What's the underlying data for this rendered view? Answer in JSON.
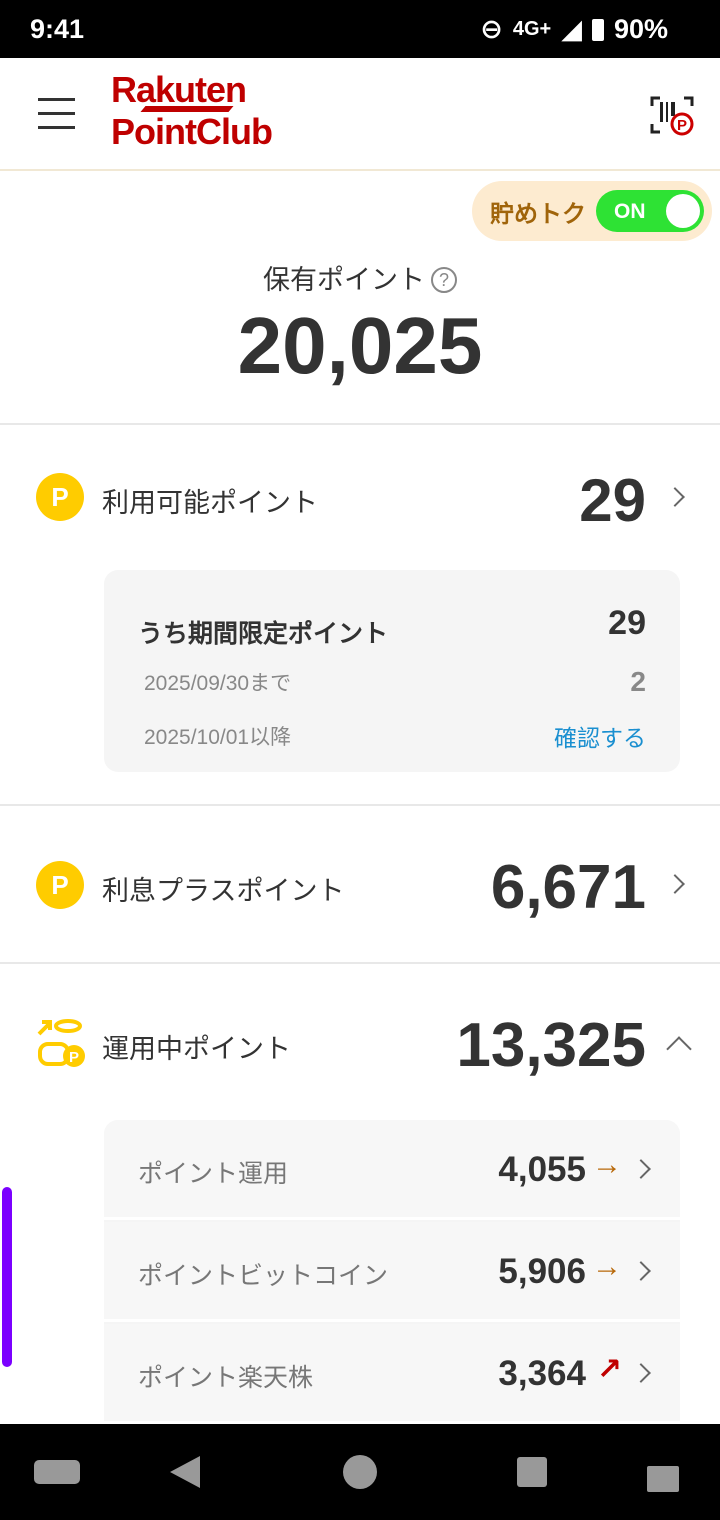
{
  "status_bar": {
    "time": "9:41",
    "network": "4G+",
    "battery": "90%"
  },
  "header": {
    "logo_line1": "Rakuten",
    "logo_line2": "PointClub"
  },
  "toggle": {
    "label": "貯めトク",
    "state": "ON",
    "color": "#2ee234"
  },
  "held": {
    "label": "保有ポイント",
    "help": "?",
    "total": "20,025"
  },
  "available": {
    "label": "利用可能ポイント",
    "value": "29",
    "icon": "P",
    "limited": {
      "label": "うち期間限定ポイント",
      "value": "29",
      "rows": [
        {
          "date": "2025/09/30まで",
          "value": "2"
        },
        {
          "date": "2025/10/01以降",
          "value": "確認する"
        }
      ]
    }
  },
  "interest": {
    "label": "利息プラスポイント",
    "value": "6,671",
    "icon": "P"
  },
  "invest": {
    "label": "運用中ポイント",
    "value": "13,325",
    "items": [
      {
        "label": "ポイント運用",
        "value": "4,055",
        "trend": "→",
        "trend_color": "#b8690a"
      },
      {
        "label": "ポイントビットコイン",
        "value": "5,906",
        "trend": "→",
        "trend_color": "#b8690a"
      },
      {
        "label": "ポイント楽天株",
        "value": "3,364",
        "trend": "↗",
        "trend_color": "#c00000"
      }
    ]
  }
}
